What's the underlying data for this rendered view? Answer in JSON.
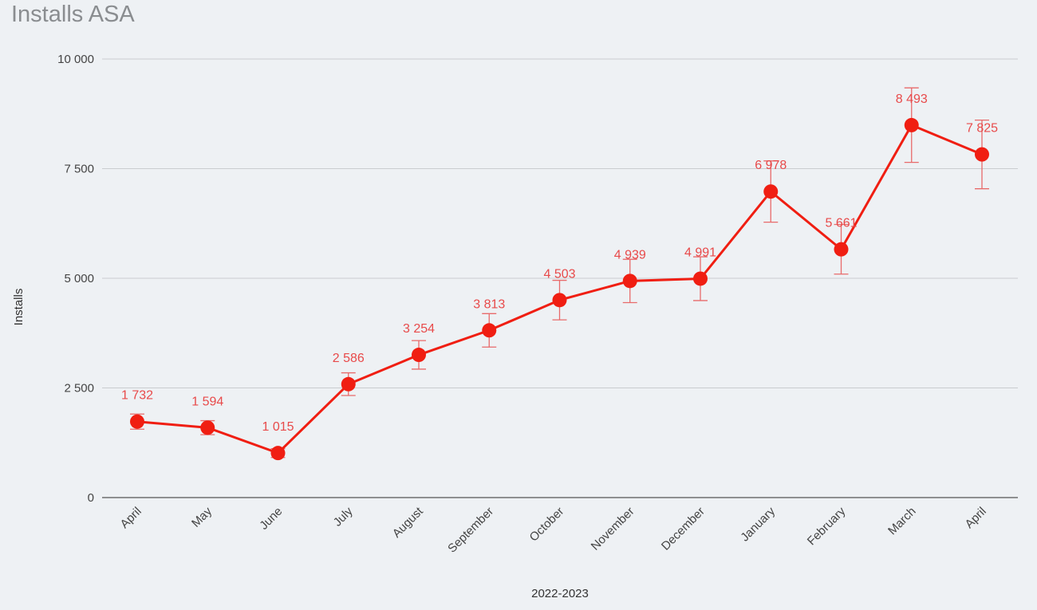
{
  "chart_data": {
    "type": "line",
    "title": "Installs ASA",
    "xlabel": "2022-2023",
    "ylabel": "Installs",
    "ylim": [
      0,
      10000
    ],
    "yticks": [
      0,
      2500,
      5000,
      7500,
      10000
    ],
    "ytick_labels": [
      "0",
      "2 500",
      "5 000",
      "7 500",
      "10 000"
    ],
    "grid": true,
    "categories": [
      "April",
      "May",
      "June",
      "July",
      "August",
      "September",
      "October",
      "November",
      "December",
      "January",
      "February",
      "March",
      "April"
    ],
    "values": [
      1732,
      1594,
      1015,
      2586,
      3254,
      3813,
      4503,
      4939,
      4991,
      6978,
      5661,
      8493,
      7825
    ],
    "data_labels": [
      "1 732",
      "1 594",
      "1 015",
      "2 586",
      "3 254",
      "3 813",
      "4 503",
      "4 939",
      "4 991",
      "6 978",
      "5 661",
      "8 493",
      "7 825"
    ],
    "error_bars_percent": 10,
    "color": "#f01e12",
    "label_color": "#e84a4a"
  }
}
